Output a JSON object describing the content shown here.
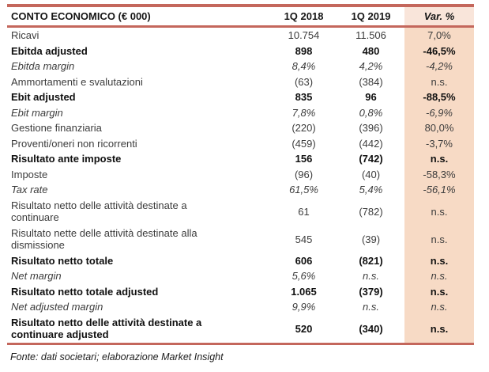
{
  "table": {
    "title": "CONTO ECONOMICO (€ 000)",
    "columns": {
      "c2018": "1Q 2018",
      "c2019": "1Q 2019",
      "cvar": "Var. %"
    },
    "rows": [
      {
        "label": "Ricavi",
        "v2018": "10.754",
        "v2019": "11.506",
        "var": "7,0%",
        "style": "normal"
      },
      {
        "label": "Ebitda adjusted",
        "v2018": "898",
        "v2019": "480",
        "var": "-46,5%",
        "style": "bold"
      },
      {
        "label": "Ebitda margin",
        "v2018": "8,4%",
        "v2019": "4,2%",
        "var": "-4,2%",
        "style": "italic"
      },
      {
        "label": "Ammortamenti e svalutazioni",
        "v2018": "(63)",
        "v2019": "(384)",
        "var": "n.s.",
        "style": "normal"
      },
      {
        "label": "Ebit adjusted",
        "v2018": "835",
        "v2019": "96",
        "var": "-88,5%",
        "style": "bold"
      },
      {
        "label": "Ebit margin",
        "v2018": "7,8%",
        "v2019": "0,8%",
        "var": "-6,9%",
        "style": "italic"
      },
      {
        "label": "Gestione finanziaria",
        "v2018": "(220)",
        "v2019": "(396)",
        "var": "80,0%",
        "style": "normal"
      },
      {
        "label": "Proventi/oneri non ricorrenti",
        "v2018": "(459)",
        "v2019": "(442)",
        "var": "-3,7%",
        "style": "normal"
      },
      {
        "label": "Risultato ante imposte",
        "v2018": "156",
        "v2019": "(742)",
        "var": "n.s.",
        "style": "bold"
      },
      {
        "label": "Imposte",
        "v2018": "(96)",
        "v2019": "(40)",
        "var": "-58,3%",
        "style": "normal"
      },
      {
        "label": "Tax rate",
        "v2018": "61,5%",
        "v2019": "5,4%",
        "var": "-56,1%",
        "style": "italic"
      },
      {
        "label": "Risultato netto delle attività destinate a\ncontinuare",
        "v2018": "61",
        "v2019": "(782)",
        "var": "n.s.",
        "style": "normal"
      },
      {
        "label": "Risultato nette delle attività destinate alla\ndismissione",
        "v2018": "545",
        "v2019": "(39)",
        "var": "n.s.",
        "style": "normal"
      },
      {
        "label": "Risultato netto totale",
        "v2018": "606",
        "v2019": "(821)",
        "var": "n.s.",
        "style": "bold"
      },
      {
        "label": "Net margin",
        "v2018": "5,6%",
        "v2019": "n.s.",
        "var": "n.s.",
        "style": "italic"
      },
      {
        "label": "Risultato netto totale adjusted",
        "v2018": "1.065",
        "v2019": "(379)",
        "var": "n.s.",
        "style": "bold"
      },
      {
        "label": "Net adjusted margin",
        "v2018": "9,9%",
        "v2019": "n.s.",
        "var": "n.s.",
        "style": "italic"
      },
      {
        "label": "Risultato netto delle attività destinate a\ncontinuare adjusted",
        "v2018": "520",
        "v2019": "(340)",
        "var": "n.s.",
        "style": "bold"
      }
    ]
  },
  "footer": {
    "source_note": "Fonte: dati societari; elaborazione Market Insight"
  },
  "colors": {
    "accent": "#C4675C",
    "var_column_bg": "#F7DAC5",
    "var_header_bg": "#F9E5DA",
    "text": "#3c3c3c"
  }
}
